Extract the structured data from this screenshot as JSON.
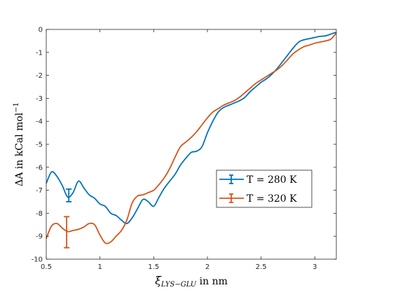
{
  "chart_data": {
    "type": "line",
    "xlabel": "ξ",
    "xlabel_sub": "LYS−GLU",
    "xlabel_suffix": " in nm",
    "ylabel_main": "ΔA in kCal mol",
    "ylabel_sup": "−1",
    "xlim": [
      0.5,
      3.2
    ],
    "ylim": [
      -10,
      0
    ],
    "xticks": [
      0.5,
      1,
      1.5,
      2,
      2.5,
      3
    ],
    "xtick_labels": [
      "0.5",
      "1",
      "1.5",
      "2",
      "2.5",
      "3"
    ],
    "yticks": [
      0,
      -1,
      -2,
      -3,
      -4,
      -5,
      -6,
      -7,
      -8,
      -9,
      -10
    ],
    "ytick_labels": [
      "0",
      "-1",
      "-2",
      "-3",
      "-4",
      "-5",
      "-6",
      "-7",
      "-8",
      "-9",
      "-10"
    ],
    "grid": false,
    "legend_position": "center-right",
    "series": [
      {
        "name": "T = 280 K",
        "color": "#0072BD",
        "x": [
          0.5,
          0.55,
          0.6,
          0.65,
          0.7,
          0.75,
          0.8,
          0.85,
          0.9,
          0.95,
          1.0,
          1.05,
          1.1,
          1.15,
          1.2,
          1.25,
          1.3,
          1.35,
          1.4,
          1.45,
          1.5,
          1.55,
          1.6,
          1.65,
          1.7,
          1.75,
          1.8,
          1.85,
          1.9,
          1.95,
          2.0,
          2.05,
          2.1,
          2.15,
          2.2,
          2.25,
          2.3,
          2.35,
          2.4,
          2.45,
          2.5,
          2.55,
          2.6,
          2.65,
          2.7,
          2.75,
          2.8,
          2.85,
          2.9,
          2.95,
          3.0,
          3.05,
          3.1,
          3.15,
          3.2
        ],
        "y": [
          -6.7,
          -6.2,
          -6.4,
          -6.8,
          -7.3,
          -7.1,
          -6.6,
          -6.9,
          -7.2,
          -7.35,
          -7.6,
          -7.7,
          -8.0,
          -8.1,
          -8.3,
          -8.45,
          -8.2,
          -7.8,
          -7.4,
          -7.5,
          -7.7,
          -7.3,
          -6.9,
          -6.6,
          -6.3,
          -5.9,
          -5.6,
          -5.35,
          -5.3,
          -5.1,
          -4.5,
          -4.0,
          -3.6,
          -3.4,
          -3.3,
          -3.2,
          -3.1,
          -2.95,
          -2.7,
          -2.5,
          -2.3,
          -2.15,
          -1.95,
          -1.7,
          -1.4,
          -1.1,
          -0.8,
          -0.55,
          -0.45,
          -0.4,
          -0.35,
          -0.3,
          -0.28,
          -0.2,
          -0.12
        ],
        "error_bar": {
          "x": 0.71,
          "y": -7.2,
          "lower": -7.5,
          "upper": -6.95
        }
      },
      {
        "name": "T = 320 K",
        "color": "#D95319",
        "x": [
          0.5,
          0.55,
          0.6,
          0.65,
          0.7,
          0.75,
          0.8,
          0.85,
          0.9,
          0.95,
          1.0,
          1.05,
          1.1,
          1.15,
          1.2,
          1.25,
          1.3,
          1.35,
          1.4,
          1.45,
          1.5,
          1.55,
          1.6,
          1.65,
          1.7,
          1.75,
          1.8,
          1.85,
          1.9,
          1.95,
          2.0,
          2.05,
          2.1,
          2.15,
          2.2,
          2.25,
          2.3,
          2.35,
          2.4,
          2.45,
          2.5,
          2.55,
          2.6,
          2.65,
          2.7,
          2.75,
          2.8,
          2.85,
          2.9,
          2.95,
          3.0,
          3.05,
          3.1,
          3.15,
          3.2
        ],
        "y": [
          -9.1,
          -8.55,
          -8.45,
          -8.65,
          -8.8,
          -8.75,
          -8.7,
          -8.6,
          -8.45,
          -8.5,
          -8.95,
          -9.3,
          -9.25,
          -9.0,
          -8.75,
          -8.3,
          -7.55,
          -7.25,
          -7.2,
          -7.1,
          -7.0,
          -6.75,
          -6.45,
          -6.05,
          -5.55,
          -5.1,
          -4.9,
          -4.7,
          -4.45,
          -4.15,
          -3.85,
          -3.6,
          -3.45,
          -3.3,
          -3.2,
          -3.1,
          -2.95,
          -2.75,
          -2.55,
          -2.35,
          -2.2,
          -2.05,
          -1.9,
          -1.75,
          -1.55,
          -1.3,
          -1.05,
          -0.88,
          -0.75,
          -0.68,
          -0.6,
          -0.55,
          -0.5,
          -0.42,
          -0.15
        ],
        "error_bar": {
          "x": 0.69,
          "y": -8.8,
          "lower": -9.5,
          "upper": -8.15
        }
      }
    ]
  }
}
